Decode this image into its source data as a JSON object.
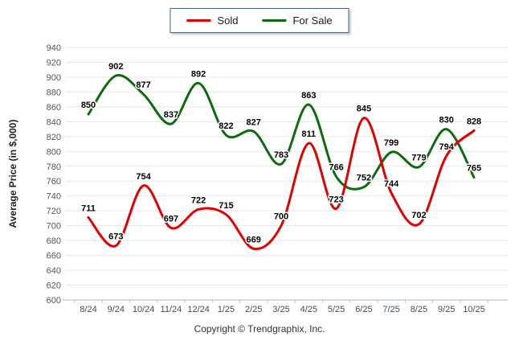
{
  "footer": {
    "copyright": "Copyright © Trendgraphix, Inc."
  },
  "colors": {
    "sold": "#e00000",
    "for_sale": "#0d6b0d",
    "grid": "#e7e7e7",
    "axis": "#a9b7c6"
  },
  "chart_data": {
    "type": "line",
    "title": "",
    "xlabel": "",
    "ylabel": "Average Price (in $,000)",
    "ylim": [
      600,
      940
    ],
    "ytick_step": 20,
    "grid": "horizontal",
    "legend_position": "top-center",
    "line_style": "smooth",
    "data_labels": true,
    "categories": [
      "8/24",
      "9/24",
      "10/24",
      "11/24",
      "12/24",
      "1/25",
      "2/25",
      "3/25",
      "4/25",
      "5/25",
      "6/25",
      "7/25",
      "8/25",
      "9/25",
      "10/25"
    ],
    "series": [
      {
        "name": "Sold",
        "color": "#e00000",
        "values": [
          711,
          673,
          754,
          697,
          722,
          715,
          669,
          700,
          811,
          723,
          845,
          744,
          702,
          794,
          828
        ]
      },
      {
        "name": "For Sale",
        "color": "#0d6b0d",
        "values": [
          850,
          902,
          877,
          837,
          892,
          822,
          827,
          783,
          863,
          766,
          752,
          799,
          779,
          830,
          765
        ]
      }
    ]
  }
}
